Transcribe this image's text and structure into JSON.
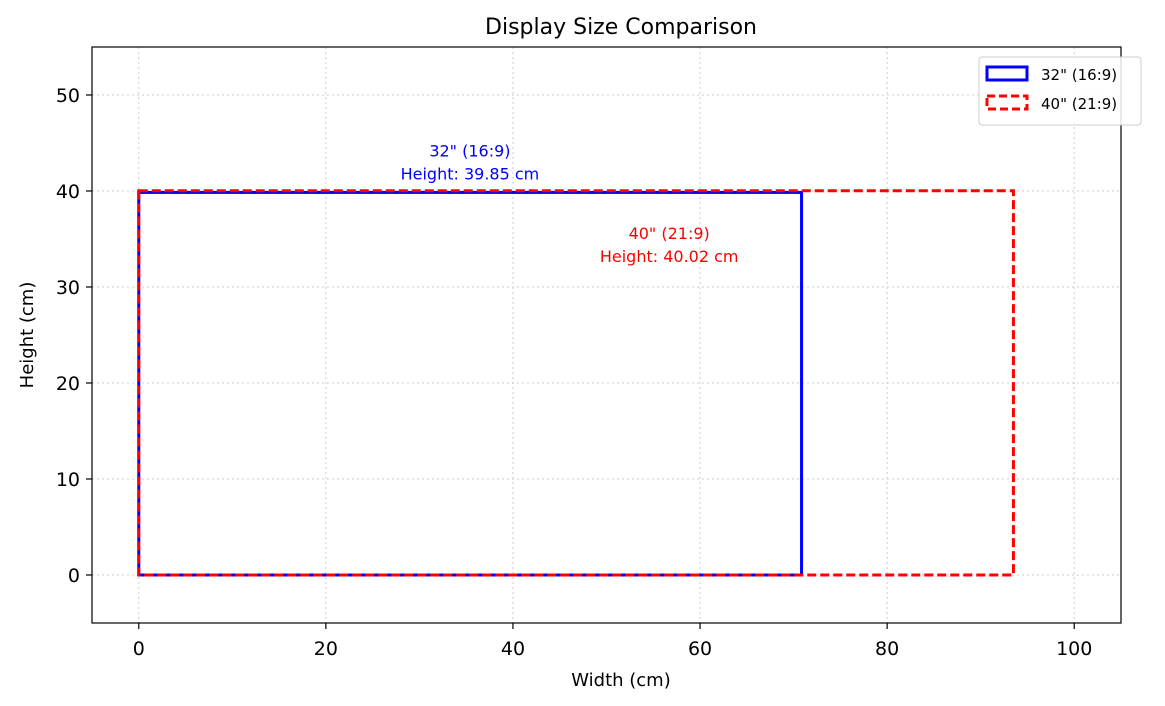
{
  "chart_data": {
    "type": "rectangles",
    "title": "Display Size Comparison",
    "xlabel": "Width (cm)",
    "ylabel": "Height (cm)",
    "xlim": [
      -5,
      105
    ],
    "ylim": [
      -5,
      55
    ],
    "xticks": [
      0,
      20,
      40,
      60,
      80,
      100
    ],
    "yticks": [
      0,
      10,
      20,
      30,
      40,
      50
    ],
    "grid": true,
    "legend_position": "top-right",
    "series": [
      {
        "name": "32\" (16:9)",
        "x": 0,
        "y": 0,
        "width": 70.85,
        "height": 39.85,
        "color": "#0000ff",
        "linestyle": "solid",
        "annotation": [
          "32\" (16:9)",
          "Height: 39.85 cm"
        ],
        "annotation_at": [
          35.4,
          41.2
        ]
      },
      {
        "name": "40\" (21:9)",
        "x": 0,
        "y": 0,
        "width": 93.5,
        "height": 40.02,
        "color": "#ff0000",
        "linestyle": "dashed",
        "annotation": [
          "40\" (21:9)",
          "Height: 40.02 cm"
        ],
        "annotation_at": [
          56.7,
          32.6
        ]
      }
    ]
  }
}
